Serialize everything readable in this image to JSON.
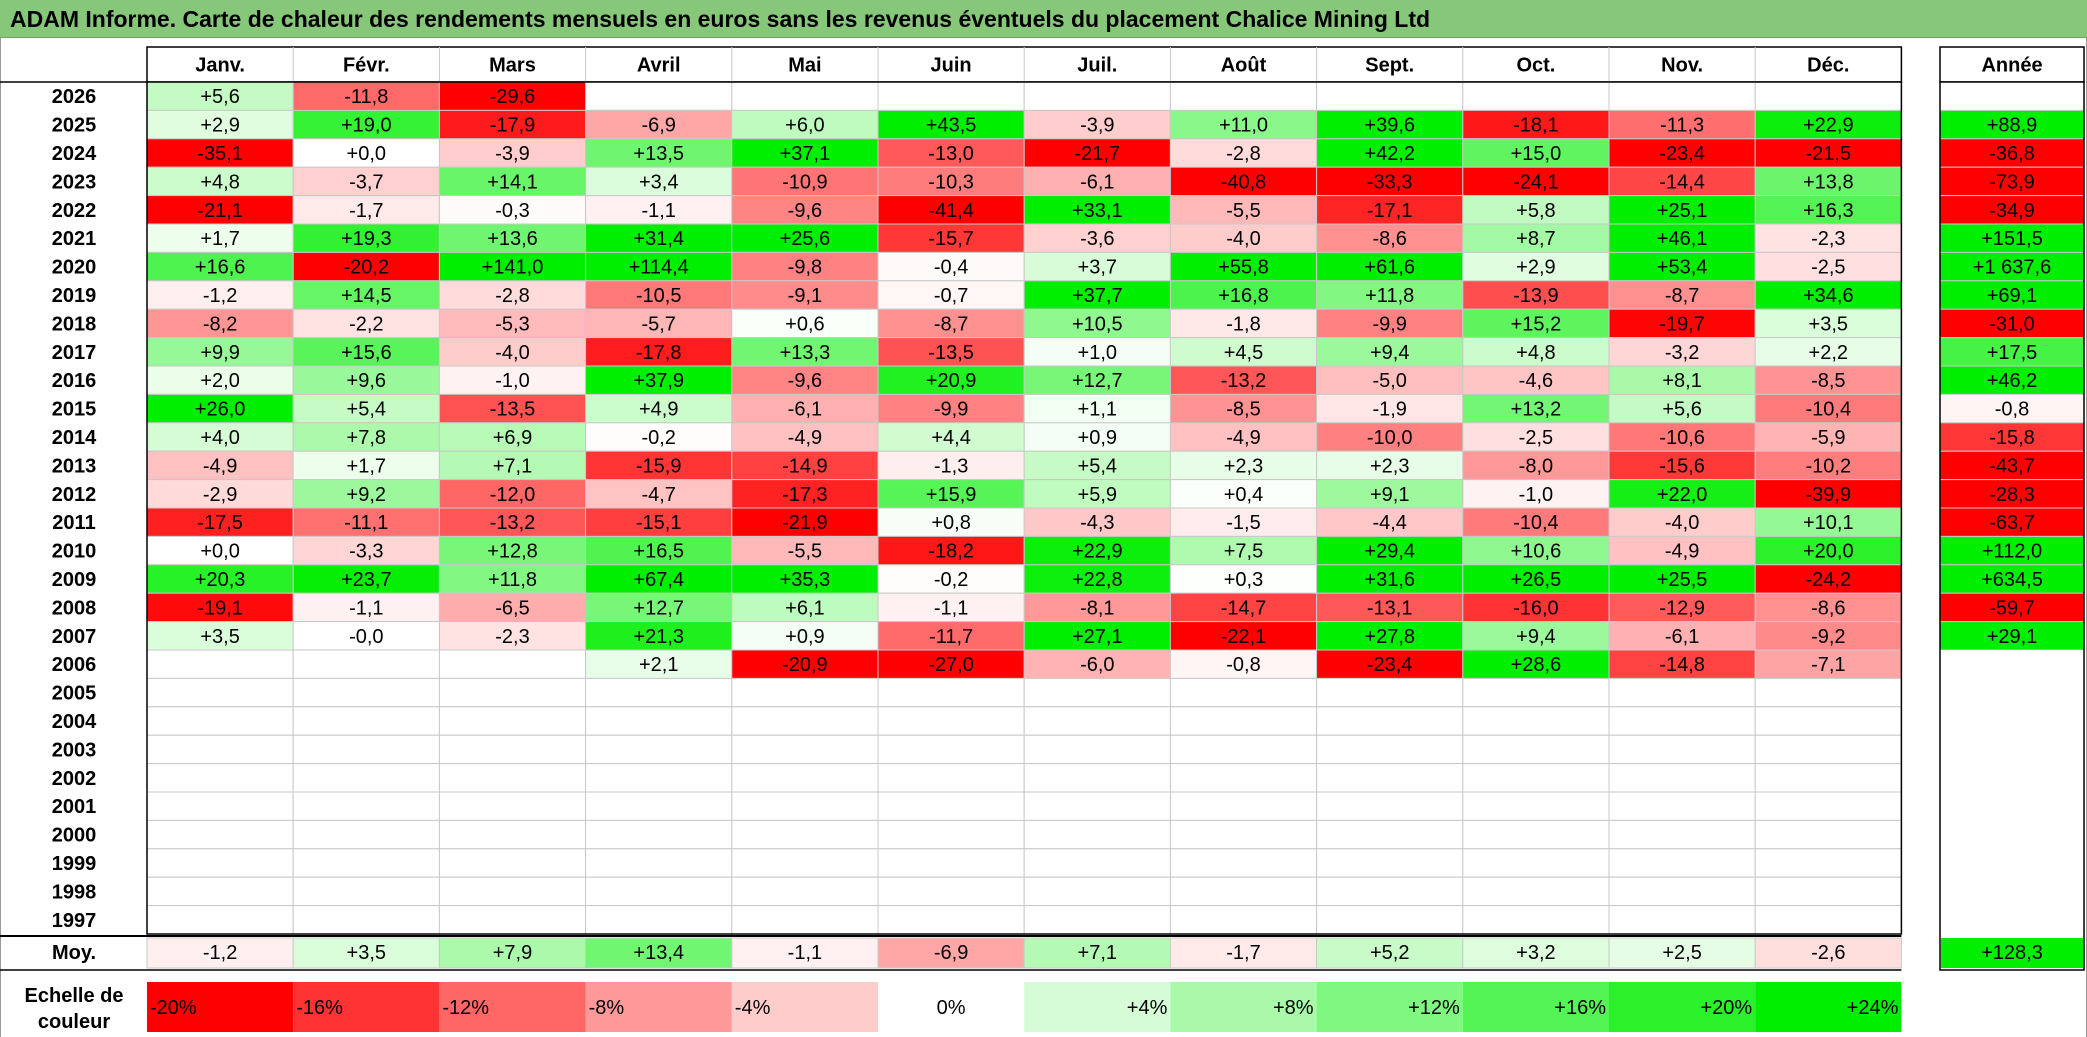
{
  "title": "ADAM Informe. Carte de chaleur des rendements mensuels en euros sans les revenus éventuels du placement Chalice Mining Ltd",
  "chart_data": {
    "type": "heatmap",
    "title": "ADAM Informe. Carte de chaleur des rendements mensuels en euros sans les revenus éventuels du placement Chalice Mining Ltd",
    "columns": [
      "Janv.",
      "Févr.",
      "Mars",
      "Avril",
      "Mai",
      "Juin",
      "Juil.",
      "Août",
      "Sept.",
      "Oct.",
      "Nov.",
      "Déc."
    ],
    "year_column_label": "Année",
    "average_row_label": "Moy.",
    "rows": [
      {
        "year": "2026",
        "months": [
          "+5,6",
          "-11,8",
          "-29,6",
          "",
          "",
          "",
          "",
          "",
          "",
          "",
          "",
          ""
        ],
        "annual": ""
      },
      {
        "year": "2025",
        "months": [
          "+2,9",
          "+19,0",
          "-17,9",
          "-6,9",
          "+6,0",
          "+43,5",
          "-3,9",
          "+11,0",
          "+39,6",
          "-18,1",
          "-11,3",
          "+22,9"
        ],
        "annual": "+88,9"
      },
      {
        "year": "2024",
        "months": [
          "-35,1",
          "+0,0",
          "-3,9",
          "+13,5",
          "+37,1",
          "-13,0",
          "-21,7",
          "-2,8",
          "+42,2",
          "+15,0",
          "-23,4",
          "-21,5"
        ],
        "annual": "-36,8"
      },
      {
        "year": "2023",
        "months": [
          "+4,8",
          "-3,7",
          "+14,1",
          "+3,4",
          "-10,9",
          "-10,3",
          "-6,1",
          "-40,8",
          "-33,3",
          "-24,1",
          "-14,4",
          "+13,8"
        ],
        "annual": "-73,9"
      },
      {
        "year": "2022",
        "months": [
          "-21,1",
          "-1,7",
          "-0,3",
          "-1,1",
          "-9,6",
          "-41,4",
          "+33,1",
          "-5,5",
          "-17,1",
          "+5,8",
          "+25,1",
          "+16,3"
        ],
        "annual": "-34,9"
      },
      {
        "year": "2021",
        "months": [
          "+1,7",
          "+19,3",
          "+13,6",
          "+31,4",
          "+25,6",
          "-15,7",
          "-3,6",
          "-4,0",
          "-8,6",
          "+8,7",
          "+46,1",
          "-2,3"
        ],
        "annual": "+151,5"
      },
      {
        "year": "2020",
        "months": [
          "+16,6",
          "-20,2",
          "+141,0",
          "+114,4",
          "-9,8",
          "-0,4",
          "+3,7",
          "+55,8",
          "+61,6",
          "+2,9",
          "+53,4",
          "-2,5"
        ],
        "annual": "+1 637,6"
      },
      {
        "year": "2019",
        "months": [
          "-1,2",
          "+14,5",
          "-2,8",
          "-10,5",
          "-9,1",
          "-0,7",
          "+37,7",
          "+16,8",
          "+11,8",
          "-13,9",
          "-8,7",
          "+34,6"
        ],
        "annual": "+69,1"
      },
      {
        "year": "2018",
        "months": [
          "-8,2",
          "-2,2",
          "-5,3",
          "-5,7",
          "+0,6",
          "-8,7",
          "+10,5",
          "-1,8",
          "-9,9",
          "+15,2",
          "-19,7",
          "+3,5"
        ],
        "annual": "-31,0"
      },
      {
        "year": "2017",
        "months": [
          "+9,9",
          "+15,6",
          "-4,0",
          "-17,8",
          "+13,3",
          "-13,5",
          "+1,0",
          "+4,5",
          "+9,4",
          "+4,8",
          "-3,2",
          "+2,2"
        ],
        "annual": "+17,5"
      },
      {
        "year": "2016",
        "months": [
          "+2,0",
          "+9,6",
          "-1,0",
          "+37,9",
          "-9,6",
          "+20,9",
          "+12,7",
          "-13,2",
          "-5,0",
          "-4,6",
          "+8,1",
          "-8,5"
        ],
        "annual": "+46,2"
      },
      {
        "year": "2015",
        "months": [
          "+26,0",
          "+5,4",
          "-13,5",
          "+4,9",
          "-6,1",
          "-9,9",
          "+1,1",
          "-8,5",
          "-1,9",
          "+13,2",
          "+5,6",
          "-10,4"
        ],
        "annual": "-0,8"
      },
      {
        "year": "2014",
        "months": [
          "+4,0",
          "+7,8",
          "+6,9",
          "-0,2",
          "-4,9",
          "+4,4",
          "+0,9",
          "-4,9",
          "-10,0",
          "-2,5",
          "-10,6",
          "-5,9"
        ],
        "annual": "-15,8"
      },
      {
        "year": "2013",
        "months": [
          "-4,9",
          "+1,7",
          "+7,1",
          "-15,9",
          "-14,9",
          "-1,3",
          "+5,4",
          "+2,3",
          "+2,3",
          "-8,0",
          "-15,6",
          "-10,2"
        ],
        "annual": "-43,7"
      },
      {
        "year": "2012",
        "months": [
          "-2,9",
          "+9,2",
          "-12,0",
          "-4,7",
          "-17,3",
          "+15,9",
          "+5,9",
          "+0,4",
          "+9,1",
          "-1,0",
          "+22,0",
          "-39,9"
        ],
        "annual": "-28,3"
      },
      {
        "year": "2011",
        "months": [
          "-17,5",
          "-11,1",
          "-13,2",
          "-15,1",
          "-21,9",
          "+0,8",
          "-4,3",
          "-1,5",
          "-4,4",
          "-10,4",
          "-4,0",
          "+10,1"
        ],
        "annual": "-63,7"
      },
      {
        "year": "2010",
        "months": [
          "+0,0",
          "-3,3",
          "+12,8",
          "+16,5",
          "-5,5",
          "-18,2",
          "+22,9",
          "+7,5",
          "+29,4",
          "+10,6",
          "-4,9",
          "+20,0"
        ],
        "annual": "+112,0"
      },
      {
        "year": "2009",
        "months": [
          "+20,3",
          "+23,7",
          "+11,8",
          "+67,4",
          "+35,3",
          "-0,2",
          "+22,8",
          "+0,3",
          "+31,6",
          "+26,5",
          "+25,5",
          "-24,2"
        ],
        "annual": "+634,5"
      },
      {
        "year": "2008",
        "months": [
          "-19,1",
          "-1,1",
          "-6,5",
          "+12,7",
          "+6,1",
          "-1,1",
          "-8,1",
          "-14,7",
          "-13,1",
          "-16,0",
          "-12,9",
          "-8,6"
        ],
        "annual": "-59,7"
      },
      {
        "year": "2007",
        "months": [
          "+3,5",
          "-0,0",
          "-2,3",
          "+21,3",
          "+0,9",
          "-11,7",
          "+27,1",
          "-22,1",
          "+27,8",
          "+9,4",
          "-6,1",
          "-9,2"
        ],
        "annual": "+29,1"
      },
      {
        "year": "2006",
        "months": [
          "",
          "",
          "",
          "+2,1",
          "-20,9",
          "-27,0",
          "-6,0",
          "-0,8",
          "-23,4",
          "+28,6",
          "-14,8",
          "-7,1"
        ],
        "annual": ""
      },
      {
        "year": "2005",
        "months": [
          "",
          "",
          "",
          "",
          "",
          "",
          "",
          "",
          "",
          "",
          "",
          ""
        ],
        "annual": ""
      },
      {
        "year": "2004",
        "months": [
          "",
          "",
          "",
          "",
          "",
          "",
          "",
          "",
          "",
          "",
          "",
          ""
        ],
        "annual": ""
      },
      {
        "year": "2003",
        "months": [
          "",
          "",
          "",
          "",
          "",
          "",
          "",
          "",
          "",
          "",
          "",
          ""
        ],
        "annual": ""
      },
      {
        "year": "2002",
        "months": [
          "",
          "",
          "",
          "",
          "",
          "",
          "",
          "",
          "",
          "",
          "",
          ""
        ],
        "annual": ""
      },
      {
        "year": "2001",
        "months": [
          "",
          "",
          "",
          "",
          "",
          "",
          "",
          "",
          "",
          "",
          "",
          ""
        ],
        "annual": ""
      },
      {
        "year": "2000",
        "months": [
          "",
          "",
          "",
          "",
          "",
          "",
          "",
          "",
          "",
          "",
          "",
          ""
        ],
        "annual": ""
      },
      {
        "year": "1999",
        "months": [
          "",
          "",
          "",
          "",
          "",
          "",
          "",
          "",
          "",
          "",
          "",
          ""
        ],
        "annual": ""
      },
      {
        "year": "1998",
        "months": [
          "",
          "",
          "",
          "",
          "",
          "",
          "",
          "",
          "",
          "",
          "",
          ""
        ],
        "annual": ""
      },
      {
        "year": "1997",
        "months": [
          "",
          "",
          "",
          "",
          "",
          "",
          "",
          "",
          "",
          "",
          "",
          ""
        ],
        "annual": ""
      }
    ],
    "averages": [
      "-1,2",
      "+3,5",
      "+7,9",
      "+13,4",
      "-1,1",
      "-6,9",
      "+7,1",
      "-1,7",
      "+5,2",
      "+3,2",
      "+2,5",
      "-2,6"
    ],
    "average_annual": "+128,3",
    "color_scale": {
      "label": "Echelle de couleur",
      "stops": [
        "-20%",
        "-16%",
        "-12%",
        "-8%",
        "-4%",
        "0%",
        "+4%",
        "+8%",
        "+12%",
        "+16%",
        "+20%",
        "+24%"
      ],
      "negative_color": "#ff0000",
      "positive_color": "#00ee00",
      "neutral_color": "#ffffff"
    }
  }
}
